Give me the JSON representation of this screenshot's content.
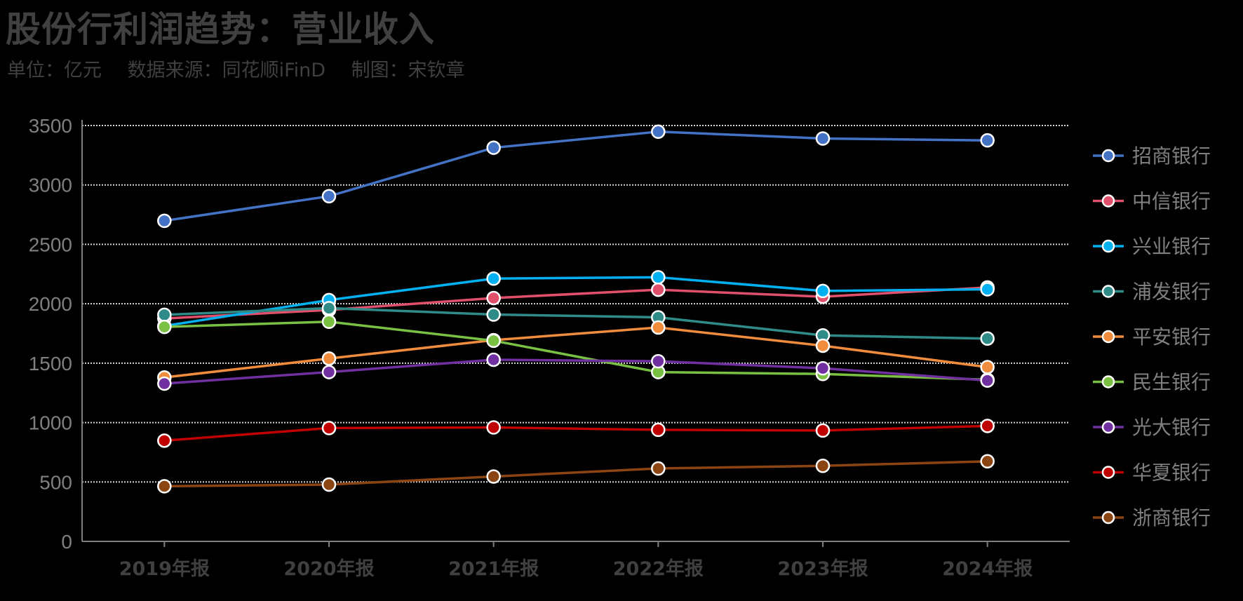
{
  "title": "股份行利润趋势：营业收入",
  "subtitle": {
    "unit": "单位：亿元",
    "source": "数据来源：同花顺iFinD",
    "author": "制图：宋钦章"
  },
  "chart_data": {
    "type": "line",
    "title": "股份行利润趋势：营业收入",
    "categories": [
      "2019年报",
      "2020年报",
      "2021年报",
      "2022年报",
      "2023年报",
      "2024年报"
    ],
    "ylim": [
      0,
      3500
    ],
    "yticks": [
      0,
      500,
      1000,
      1500,
      2000,
      2500,
      3000,
      3500
    ],
    "grid": true,
    "legend": "right",
    "series": [
      {
        "name": "招商银行",
        "color": "#4472C4",
        "values": [
          2698,
          2905,
          3313,
          3448,
          3391,
          3375
        ]
      },
      {
        "name": "中信银行",
        "color": "#E0506A",
        "values": [
          1876,
          1948,
          2048,
          2118,
          2059,
          2137
        ]
      },
      {
        "name": "兴业银行",
        "color": "#00B0F0",
        "values": [
          1813,
          2031,
          2212,
          2223,
          2108,
          2122
        ]
      },
      {
        "name": "浦发银行",
        "color": "#2E8B88",
        "values": [
          1907,
          1963,
          1909,
          1886,
          1734,
          1707
        ]
      },
      {
        "name": "平安银行",
        "color": "#F08C3C",
        "values": [
          1380,
          1539,
          1694,
          1800,
          1647,
          1467
        ]
      },
      {
        "name": "民生银行",
        "color": "#7AC143",
        "values": [
          1805,
          1849,
          1689,
          1425,
          1409,
          1361
        ]
      },
      {
        "name": "光大银行",
        "color": "#7030A0",
        "values": [
          1328,
          1425,
          1529,
          1516,
          1457,
          1354
        ]
      },
      {
        "name": "华夏银行",
        "color": "#C00000",
        "values": [
          848,
          954,
          959,
          939,
          933,
          972
        ]
      },
      {
        "name": "浙商银行",
        "color": "#8B4513",
        "values": [
          464,
          478,
          546,
          614,
          636,
          674
        ]
      }
    ]
  }
}
